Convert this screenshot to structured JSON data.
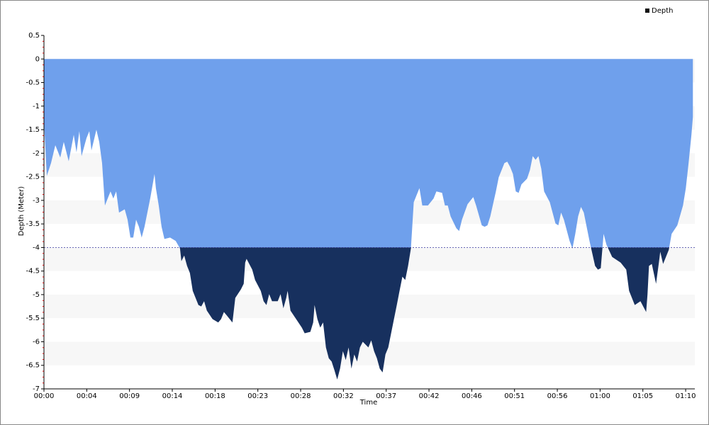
{
  "chart_data": {
    "type": "area",
    "xlabel": "Time",
    "ylabel": "Depth (Meter)",
    "legend": "top-right",
    "x": [
      0,
      0.31,
      0.77,
      1.24,
      1.78,
      2.16,
      2.7,
      3.25,
      3.55,
      3.86,
      4.1,
      4.64,
      4.95,
      5.18,
      5.72,
      6.03,
      6.34,
      6.65,
      7.26,
      7.57,
      7.88,
      8.19,
      8.81,
      9.12,
      9.43,
      9.74,
      10.05,
      10.36,
      10.66,
      10.97,
      11.59,
      12.06,
      12.21,
      12.52,
      12.83,
      13.14,
      13.76,
      14.37,
      14.84,
      14.99,
      15.3,
      15.61,
      15.92,
      16.23,
      16.85,
      17.16,
      17.47,
      17.77,
      18.39,
      19.01,
      19.32,
      19.63,
      19.94,
      20.56,
      20.87,
      21.48,
      21.79,
      21.95,
      22.1,
      22.72,
      23.03,
      23.65,
      23.96,
      24.27,
      24.57,
      24.88,
      25.5,
      25.81,
      26.12,
      26.43,
      26.58,
      26.89,
      27.51,
      28.13,
      28.44,
      29.06,
      29.37,
      29.52,
      29.83,
      30.14,
      30.45,
      30.76,
      31.07,
      31.38,
      31.68,
      31.99,
      32.3,
      32.61,
      32.92,
      33.23,
      33.54,
      33.85,
      34.16,
      34.47,
      34.78,
      35.39,
      35.7,
      36.01,
      36.32,
      36.63,
      36.94,
      37.25,
      37.56,
      37.87,
      38.18,
      38.49,
      38.79,
      39.1,
      39.41,
      39.72,
      40.03,
      40.34,
      40.65,
      40.96,
      41.27,
      41.89,
      42.5,
      42.81,
      43.43,
      43.74,
      44.05,
      44.36,
      44.98,
      45.29,
      45.6,
      46.21,
      46.83,
      47.14,
      47.76,
      48.07,
      48.38,
      48.69,
      49.3,
      49.61,
      50.23,
      50.54,
      50.85,
      51.16,
      51.47,
      51.78,
      52.09,
      52.7,
      53.01,
      53.32,
      53.63,
      53.94,
      54.25,
      54.56,
      55.18,
      55.8,
      56.11,
      56.41,
      56.72,
      57.34,
      57.65,
      57.96,
      58.27,
      58.58,
      58.89,
      59.51,
      60.12,
      60.43,
      60.74,
      61.05,
      61.36,
      61.98,
      62.91,
      63.52,
      63.83,
      64.45,
      65.07,
      65.69,
      65.84,
      66,
      66.31,
      66.77,
      67.08,
      67.23,
      67.54,
      68.16,
      68.47,
      69.09,
      69.71,
      70.02,
      70.32,
      70.63,
      70.79
    ],
    "series": [
      {
        "name": "Depth",
        "color": "#6fa0ec",
        "values": [
          -1.31,
          -2.48,
          -2.21,
          -1.83,
          -2.09,
          -1.76,
          -2.17,
          -1.61,
          -1.98,
          -1.53,
          -2.06,
          -1.68,
          -1.53,
          -1.94,
          -1.5,
          -1.76,
          -2.21,
          -3.11,
          -2.81,
          -2.96,
          -2.81,
          -3.26,
          -3.19,
          -3.41,
          -3.79,
          -3.79,
          -3.41,
          -3.56,
          -3.79,
          -3.56,
          -2.96,
          -2.44,
          -2.74,
          -3.11,
          -3.56,
          -3.82,
          -3.79,
          -3.86,
          -4.02,
          -4.29,
          -4.17,
          -4.39,
          -4.54,
          -4.92,
          -5.22,
          -5.25,
          -5.14,
          -5.34,
          -5.52,
          -5.59,
          -5.52,
          -5.37,
          -5.44,
          -5.59,
          -5.07,
          -4.89,
          -4.77,
          -4.32,
          -4.24,
          -4.47,
          -4.69,
          -4.92,
          -5.14,
          -5.22,
          -4.99,
          -5.14,
          -5.14,
          -4.99,
          -5.29,
          -5.07,
          -4.92,
          -5.34,
          -5.52,
          -5.7,
          -5.82,
          -5.79,
          -5.59,
          -5.22,
          -5.52,
          -5.7,
          -5.59,
          -6.12,
          -6.35,
          -6.42,
          -6.6,
          -6.8,
          -6.57,
          -6.2,
          -6.39,
          -6.12,
          -6.57,
          -6.27,
          -6.42,
          -6.12,
          -6,
          -6.12,
          -5.97,
          -6.2,
          -6.35,
          -6.57,
          -6.65,
          -6.27,
          -6.12,
          -5.82,
          -5.52,
          -5.22,
          -4.92,
          -4.62,
          -4.69,
          -4.39,
          -4.02,
          -3.04,
          -2.89,
          -2.74,
          -3.11,
          -3.11,
          -2.96,
          -2.81,
          -2.84,
          -3.11,
          -3.11,
          -3.34,
          -3.59,
          -3.65,
          -3.41,
          -3.08,
          -2.93,
          -3.11,
          -3.53,
          -3.56,
          -3.53,
          -3.34,
          -2.81,
          -2.51,
          -2.21,
          -2.18,
          -2.29,
          -2.44,
          -2.81,
          -2.84,
          -2.66,
          -2.54,
          -2.36,
          -2.06,
          -2.14,
          -2.06,
          -2.33,
          -2.81,
          -3.04,
          -3.49,
          -3.53,
          -3.26,
          -3.41,
          -3.86,
          -4.02,
          -3.71,
          -3.34,
          -3.14,
          -3.26,
          -3.86,
          -4.39,
          -4.47,
          -4.44,
          -3.71,
          -3.94,
          -4.2,
          -4.32,
          -4.47,
          -4.92,
          -5.22,
          -5.14,
          -5.37,
          -4.99,
          -4.39,
          -4.35,
          -4.77,
          -4.32,
          -4.09,
          -4.35,
          -4.05,
          -3.71,
          -3.53,
          -3.11,
          -2.74,
          -2.21,
          -1.61,
          -1.23
        ]
      }
    ],
    "threshold": -4,
    "below_color": "#17305e",
    "xlim": [
      0,
      71
    ],
    "xticks": [
      {
        "value": 0,
        "label": "00:00"
      },
      {
        "value": 4.667,
        "label": "00:04"
      },
      {
        "value": 9.333,
        "label": "00:09"
      },
      {
        "value": 14,
        "label": "00:14"
      },
      {
        "value": 18.667,
        "label": "00:18"
      },
      {
        "value": 23.333,
        "label": "00:23"
      },
      {
        "value": 28,
        "label": "00:28"
      },
      {
        "value": 32.667,
        "label": "00:32"
      },
      {
        "value": 37.333,
        "label": "00:37"
      },
      {
        "value": 42,
        "label": "00:42"
      },
      {
        "value": 46.667,
        "label": "00:46"
      },
      {
        "value": 51.333,
        "label": "00:51"
      },
      {
        "value": 56,
        "label": "00:56"
      },
      {
        "value": 60.667,
        "label": "01:00"
      },
      {
        "value": 65.333,
        "label": "01:05"
      },
      {
        "value": 70,
        "label": "01:10"
      }
    ],
    "ylim": [
      -7,
      0.5
    ],
    "yticks": [
      0.5,
      0,
      -0.5,
      -1,
      -1.5,
      -2,
      -2.5,
      -3,
      -3.5,
      -4,
      -4.5,
      -5,
      -5.5,
      -6,
      -6.5,
      -7
    ]
  }
}
